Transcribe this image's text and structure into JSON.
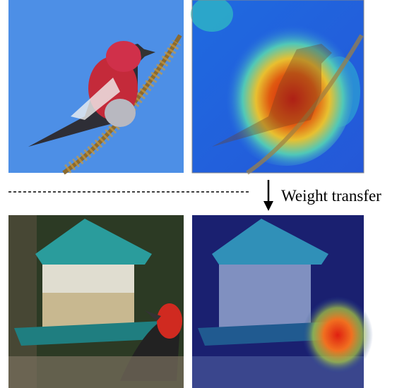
{
  "annotation": {
    "label": "Weight transfer"
  }
}
